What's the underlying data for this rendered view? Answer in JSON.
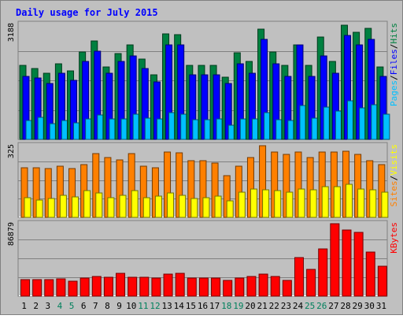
{
  "chart_data": {
    "type": "bar",
    "title": "Daily usage for July 2015",
    "categories": [
      "1",
      "2",
      "3",
      "4",
      "5",
      "6",
      "7",
      "8",
      "9",
      "10",
      "11",
      "12",
      "13",
      "14",
      "15",
      "16",
      "17",
      "18",
      "19",
      "20",
      "21",
      "22",
      "23",
      "24",
      "25",
      "26",
      "27",
      "28",
      "29",
      "30",
      "31"
    ],
    "weekend_days": [
      "4",
      "5",
      "11",
      "12",
      "18",
      "19",
      "25",
      "26"
    ],
    "panels": [
      {
        "id": "hits",
        "max_label": "3188",
        "ylim": [
          0,
          3188
        ],
        "grid": true,
        "series": [
          {
            "name": "Hits",
            "color": "#008040",
            "values": [
              2060,
              1960,
              1830,
              2100,
              1900,
              2430,
              2730,
              2000,
              2380,
              2630,
              2230,
              1780,
              2930,
              2900,
              2060,
              2060,
              2060,
              1730,
              2400,
              2160,
              3060,
              2430,
              2060,
              2630,
              2060,
              2830,
              2160,
              3160,
              2960,
              3080,
              2000
            ]
          },
          {
            "name": "Files",
            "color": "#0000ff",
            "values": [
              1750,
              1700,
              1560,
              1840,
              1630,
              2170,
              2440,
              1840,
              2170,
              2310,
              1970,
              1600,
              2630,
              2630,
              1800,
              1800,
              1800,
              1560,
              2100,
              1840,
              2780,
              2100,
              1750,
              2630,
              1750,
              2310,
              1840,
              2880,
              2630,
              2780,
              1750
            ]
          },
          {
            "name": "Pages",
            "color": "#00c0ff",
            "values": [
              520,
              620,
              430,
              530,
              450,
              560,
              680,
              560,
              560,
              690,
              580,
              560,
              750,
              700,
              550,
              540,
              560,
              400,
              560,
              560,
              750,
              540,
              520,
              930,
              590,
              900,
              780,
              1080,
              870,
              970,
              700
            ]
          }
        ]
      },
      {
        "id": "visits",
        "max_label": "325",
        "ylim": [
          0,
          325
        ],
        "grid": true,
        "series": [
          {
            "name": "Sites",
            "color": "#ff8000",
            "values": [
              225,
              225,
              220,
              232,
              223,
              239,
              290,
              270,
              262,
              290,
              232,
              225,
              298,
              292,
              257,
              257,
              245,
              188,
              232,
              270,
              324,
              295,
              286,
              295,
              272,
              298,
              295,
              300,
              285,
              257,
              239
            ]
          },
          {
            "name": "Visits",
            "color": "#ffff00",
            "values": [
              90,
              80,
              85,
              100,
              92,
              120,
              110,
              90,
              100,
              120,
              90,
              95,
              110,
              100,
              85,
              90,
              95,
              75,
              115,
              130,
              125,
              120,
              115,
              130,
              125,
              140,
              140,
              150,
              130,
              125,
              115
            ]
          }
        ]
      },
      {
        "id": "kbytes",
        "max_label": "86879",
        "ylim": [
          0,
          86879
        ],
        "grid": true,
        "series": [
          {
            "name": "KBytes",
            "color": "#ff0000",
            "values": [
              20000,
              19500,
              19500,
              20500,
              17800,
              21500,
              23800,
              22500,
              27000,
              23000,
              22500,
              22000,
              26000,
              27500,
              21500,
              21500,
              21500,
              18500,
              21800,
              23500,
              26500,
              23500,
              18500,
              46500,
              32000,
              56500,
              86879,
              79000,
              76500,
              52500,
              36000
            ]
          }
        ]
      }
    ],
    "legend_right": [
      {
        "panel": "hits",
        "entries": [
          {
            "text": "Pages",
            "color": "#00c0ff"
          },
          {
            "text": "/",
            "color": "#000000"
          },
          {
            "text": "Files",
            "color": "#0000ff"
          },
          {
            "text": "/",
            "color": "#000000"
          },
          {
            "text": "Hits",
            "color": "#008040"
          }
        ]
      },
      {
        "panel": "visits",
        "entries": [
          {
            "text": "Sites",
            "color": "#ff8000"
          },
          {
            "text": "/",
            "color": "#000000"
          },
          {
            "text": "Visits",
            "color": "#ffff00"
          }
        ]
      },
      {
        "panel": "kbytes",
        "entries": [
          {
            "text": "KBytes",
            "color": "#ff0000"
          }
        ]
      }
    ],
    "colors": {
      "background": "#c0c0c0",
      "title": "#0000ff",
      "weekday_label": "#000000",
      "weekend_label": "#00805c",
      "grid": "#808080"
    }
  }
}
